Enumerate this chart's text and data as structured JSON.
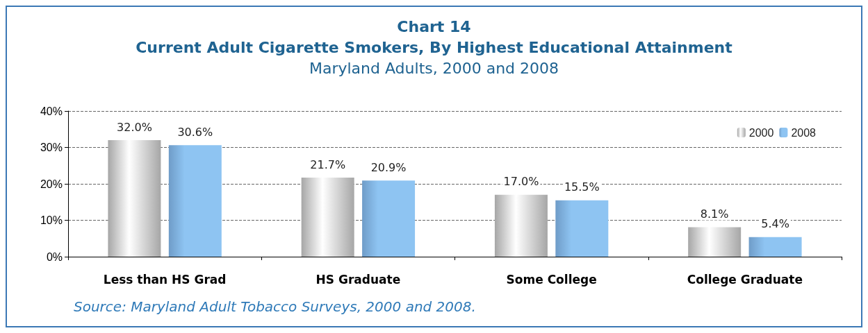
{
  "chart_data": {
    "type": "bar",
    "title": "Chart 14\nCurrent Adult Cigarette Smokers, By Highest Educational Attainment",
    "subtitle": "Maryland Adults, 2000 and 2008",
    "categories": [
      "Less than HS Grad",
      "HS Graduate",
      "Some College",
      "College Graduate"
    ],
    "series": [
      {
        "name": "2000",
        "color": "#a6a6a6",
        "values": [
          32.0,
          21.7,
          17.0,
          8.1
        ],
        "value_labels": [
          "32.0%",
          "21.7%",
          "17.0%",
          "8.1%"
        ]
      },
      {
        "name": "2008",
        "color": "#8ec4f2",
        "values": [
          30.6,
          20.9,
          15.5,
          5.4
        ],
        "value_labels": [
          "30.6%",
          "20.9%",
          "15.5%",
          "5.4%"
        ]
      }
    ],
    "ylim": [
      0,
      40
    ],
    "yticks": [
      {
        "value": 0,
        "label": "0%"
      },
      {
        "value": 10,
        "label": "10%"
      },
      {
        "value": 20,
        "label": "20%"
      },
      {
        "value": 30,
        "label": "30%"
      },
      {
        "value": 40,
        "label": "40%"
      }
    ],
    "grid": "y",
    "legend": "top right",
    "annotations": [
      "Source: Maryland Adult Tobacco Surveys, 2000 and 2008."
    ]
  }
}
